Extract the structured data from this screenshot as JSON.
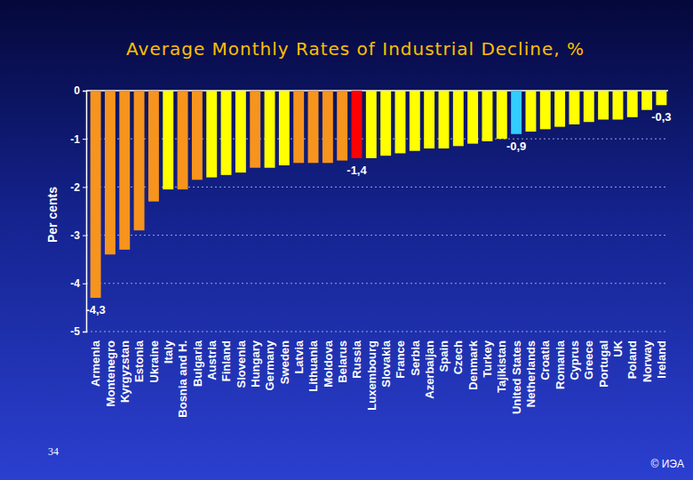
{
  "chart_data": {
    "type": "bar",
    "title": "Average Monthly Rates of Industrial Decline, %",
    "y_label": "Per cents",
    "page_number": "34",
    "copyright": "© ИЭА",
    "categories": [
      "Armenia",
      "Montenegro",
      "Kyrgyzstan",
      "Estonia",
      "Ukraine",
      "Italy",
      "Bosnia and H.",
      "Bulgaria",
      "Austria",
      "Finland",
      "Slovenia",
      "Hungary",
      "Germany",
      "Sweden",
      "Latvia",
      "Lithuania",
      "Moldova",
      "Belarus",
      "Russia",
      "Luxembourg",
      "Slovakia",
      "France",
      "Serbia",
      "Azerbaijan",
      "Spain",
      "Czech",
      "Denmark",
      "Turkey",
      "Tajikistan",
      "United States",
      "Netherlands",
      "Croatia",
      "Romania",
      "Cyprus",
      "Greece",
      "Portugal",
      "UK",
      "Poland",
      "Norway",
      "Ireland"
    ],
    "values": [
      -4.3,
      -3.4,
      -3.3,
      -2.9,
      -2.3,
      -2.05,
      -2.05,
      -1.85,
      -1.8,
      -1.75,
      -1.7,
      -1.6,
      -1.6,
      -1.55,
      -1.5,
      -1.5,
      -1.5,
      -1.45,
      -1.4,
      -1.4,
      -1.35,
      -1.3,
      -1.25,
      -1.2,
      -1.2,
      -1.15,
      -1.1,
      -1.05,
      -1.0,
      -0.9,
      -0.85,
      -0.8,
      -0.75,
      -0.7,
      -0.65,
      -0.6,
      -0.6,
      -0.55,
      -0.4,
      -0.3
    ],
    "value_labels": [
      "-4,3",
      null,
      null,
      null,
      null,
      null,
      null,
      null,
      null,
      null,
      null,
      null,
      null,
      null,
      null,
      null,
      null,
      null,
      "-1,4",
      null,
      null,
      null,
      null,
      null,
      null,
      null,
      null,
      null,
      null,
      "-0,9",
      null,
      null,
      null,
      null,
      null,
      null,
      null,
      null,
      null,
      "-0,3"
    ],
    "colors": [
      "#f7941d",
      "#f7941d",
      "#f7941d",
      "#f7941d",
      "#f7941d",
      "#ffff00",
      "#f7941d",
      "#f7941d",
      "#ffff00",
      "#ffff00",
      "#ffff00",
      "#f7941d",
      "#ffff00",
      "#ffff00",
      "#f7941d",
      "#f7941d",
      "#f7941d",
      "#f7941d",
      "#ff0000",
      "#ffff00",
      "#ffff00",
      "#ffff00",
      "#ffff00",
      "#ffff00",
      "#ffff00",
      "#ffff00",
      "#ffff00",
      "#ffff00",
      "#ffff00",
      "#33ccff",
      "#ffff00",
      "#ffff00",
      "#ffff00",
      "#ffff00",
      "#ffff00",
      "#ffff00",
      "#ffff00",
      "#ffff00",
      "#ffff00",
      "#ffff00"
    ],
    "ylim": [
      -5,
      0
    ],
    "yticks": [
      0,
      -1,
      -2,
      -3,
      -4,
      -5
    ],
    "grid": true
  }
}
